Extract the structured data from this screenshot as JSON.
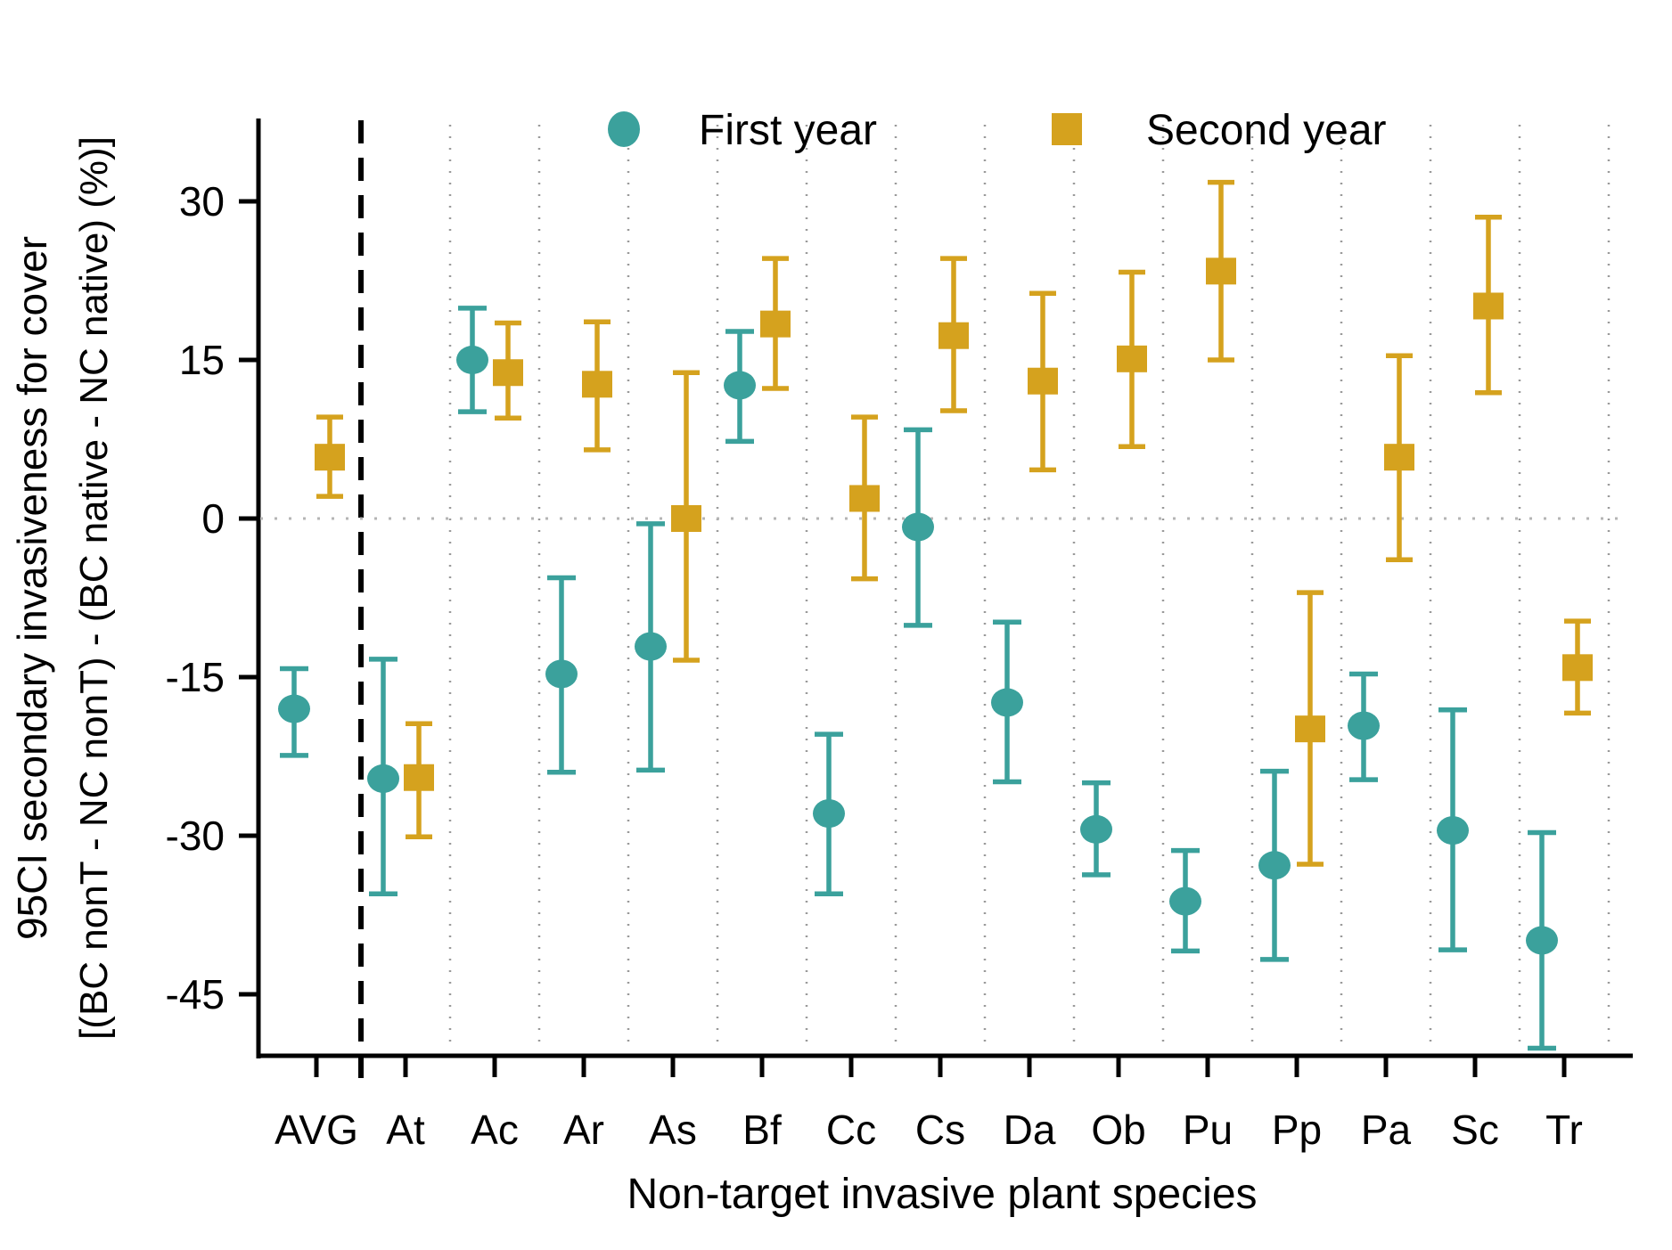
{
  "figure": {
    "background": "#ffffff",
    "text_color": "#000000",
    "grid_color": "#9a9a9a",
    "zero_line_color": "#b5b5b5"
  },
  "chart_data": {
    "type": "scatter",
    "subtype": "point-range (mean with 95% CI error bars)",
    "title": "",
    "xlabel": "Non-target invasive plant species",
    "ylabel_line1": "95CI secondary invasiveness for cover",
    "ylabel_line2": "[(BC nonT - NC nonT) - (BC native - NC native) (%)]",
    "categories": [
      "AVG",
      "At",
      "Ac",
      "Ar",
      "As",
      "Bf",
      "Cc",
      "Cs",
      "Da",
      "Ob",
      "Pu",
      "Pp",
      "Pa",
      "Sc",
      "Tr"
    ],
    "y_ticks": [
      30,
      15,
      0,
      -15,
      -30,
      -45
    ],
    "ylim": [
      -52,
      35
    ],
    "grid": "dotted vertical separators between species; dashed black separator after AVG; dotted horizontal zero line",
    "legend_position": "top",
    "zero_reference": 0,
    "series": [
      {
        "name": "First year",
        "marker": "circle",
        "color": "#3ba19c",
        "values": [
          -18.0,
          -24.6,
          15.0,
          -14.7,
          -12.1,
          12.6,
          -27.9,
          -0.8,
          -17.4,
          -29.4,
          -36.2,
          -32.8,
          -19.6,
          -29.5,
          -39.9
        ],
        "ci_low": [
          -22.4,
          -35.5,
          10.1,
          -24.0,
          -23.8,
          7.3,
          -35.5,
          -10.1,
          -24.9,
          -33.7,
          -40.9,
          -41.7,
          -24.7,
          -40.8,
          -50.1
        ],
        "ci_high": [
          -14.2,
          -13.3,
          19.9,
          -5.6,
          -0.5,
          17.7,
          -20.4,
          8.4,
          -9.8,
          -25.0,
          -31.4,
          -23.9,
          -14.7,
          -18.1,
          -29.7
        ]
      },
      {
        "name": "Second year",
        "marker": "square",
        "color": "#d5a21e",
        "values": [
          5.8,
          -24.5,
          13.8,
          12.7,
          0.0,
          18.4,
          1.9,
          17.3,
          13.0,
          15.1,
          23.4,
          -19.9,
          5.8,
          20.1,
          -14.1
        ],
        "ci_low": [
          2.1,
          -30.1,
          9.5,
          6.5,
          -13.4,
          12.3,
          -5.7,
          10.2,
          4.6,
          6.8,
          15.0,
          -32.7,
          -3.9,
          11.9,
          -18.4
        ],
        "ci_high": [
          9.6,
          -19.4,
          18.5,
          18.6,
          13.8,
          24.6,
          9.6,
          24.6,
          21.3,
          23.3,
          31.8,
          -7.0,
          15.4,
          28.5,
          -9.7
        ]
      }
    ]
  }
}
